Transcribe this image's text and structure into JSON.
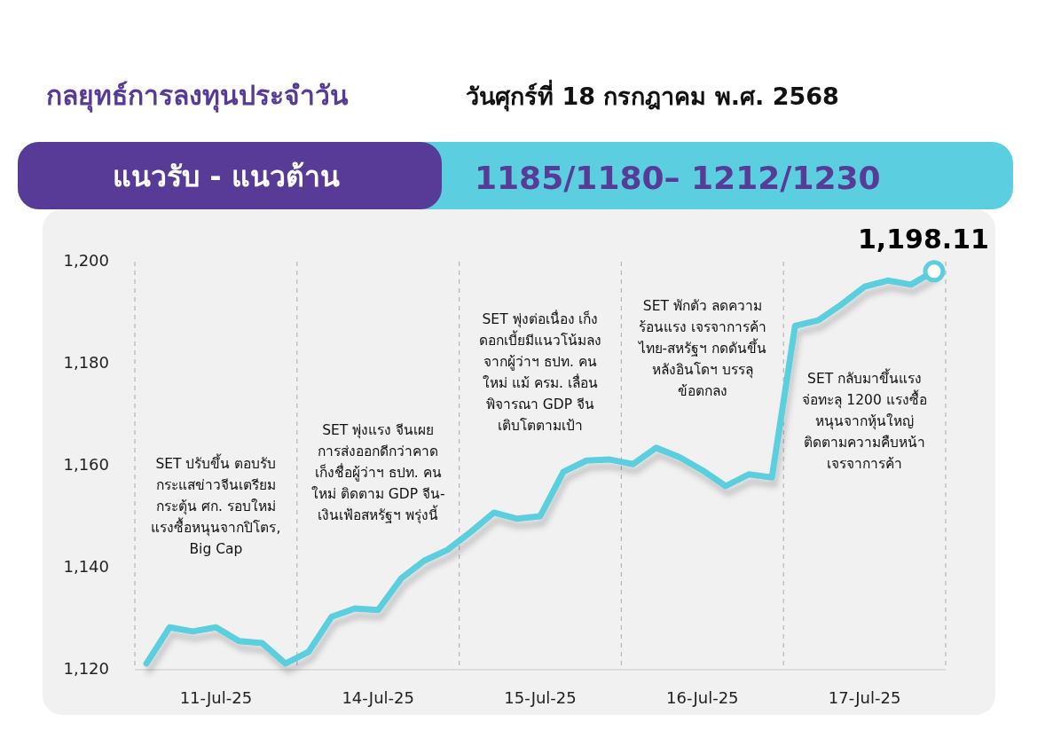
{
  "chart_data": {
    "type": "line",
    "title": "กลยุทธ์การลงทุนประจำวัน",
    "subtitle": "วันศุกร์ที่ 18 กรกฎาคม พ.ศ. 2568",
    "categories": [
      null,
      null,
      null,
      "11-Jul-25",
      null,
      null,
      null,
      null,
      null,
      null,
      "14-Jul-25",
      null,
      null,
      null,
      null,
      null,
      null,
      "15-Jul-25",
      null,
      null,
      null,
      null,
      null,
      null,
      "16-Jul-25",
      null,
      null,
      null,
      null,
      null,
      null,
      "17-Jul-25",
      null,
      null,
      null
    ],
    "series": [
      {
        "color": "#5bcfdf",
        "values": [
          1121.2,
          1128.3,
          1127.5,
          1128.3,
          1125.6,
          1125.2,
          1121.2,
          1123.5,
          1130.4,
          1132,
          1131.7,
          1137.9,
          1141.4,
          1143.5,
          1147,
          1150.8,
          1149.6,
          1150.1,
          1158.8,
          1161,
          1161.2,
          1160.3,
          1163.5,
          1161.7,
          1159.1,
          1156,
          1158.3,
          1157.7,
          1187.4,
          1188.5,
          1191.6,
          1195.1,
          1196.3,
          1195.5,
          1198.11
        ],
        "value_labels": [
          null,
          null,
          null,
          null,
          null,
          null,
          null,
          null,
          null,
          null,
          null,
          null,
          null,
          null,
          null,
          null,
          null,
          null,
          null,
          null,
          null,
          null,
          null,
          null,
          null,
          null,
          null,
          null,
          null,
          null,
          null,
          null,
          null,
          null,
          "1,198.11"
        ]
      }
    ],
    "ylim": [
      1120,
      1200
    ],
    "yticks": [
      {
        "value": 1120,
        "label": "1,120"
      },
      {
        "value": 1140,
        "label": "1,140"
      },
      {
        "value": 1160,
        "label": "1,160"
      },
      {
        "value": 1180,
        "label": "1,180"
      },
      {
        "value": 1200,
        "label": "1,200"
      }
    ],
    "grid": "x",
    "annotations": [
      "แนวรับ - แนวต้าน",
      "1185/1180– 1212/1230",
      "SET ปรับขึ้น ตอบรับ\nกระแสข่าวจีนเตรียม\nกระตุ้น ศก. รอบใหม่\nแรงซื้อหนุนจากปิโตร,\nBig Cap",
      "SET พุ่งแรง จีนเผย\nการส่งออกดีกว่าคาด\nเก็งชื่อผู้ว่าฯ ธปท. คน\nใหม่ ติดตาม GDP จีน-\nเงินเฟ้อสหรัฐฯ พรุ่งนี้",
      "SET พุ่งต่อเนื่อง เก็ง\nดอกเบี้ยมีแนวโน้มลง\nจากผู้ว่าฯ ธปท. คน\nใหม่ แม้ ครม. เลื่อน\nพิจารณา GDP จีน\nเติบโตตามเป้า",
      "SET พักตัว ลดความ\nร้อนแรง เจรจาการค้า\nไทย-สหรัฐฯ กดดันขึ้น\nหลังอินโดฯ บรรลุ\nข้อตกลง",
      "SET กลับมาขึ้นแรง\nจ่อทะลุ 1200 แรงซื้อ\nหนุนจากหุ้นใหญ่\nติดตามความคืบหน้า\nเจรจาการค้า"
    ],
    "marker": "none",
    "line_style": "solid"
  }
}
